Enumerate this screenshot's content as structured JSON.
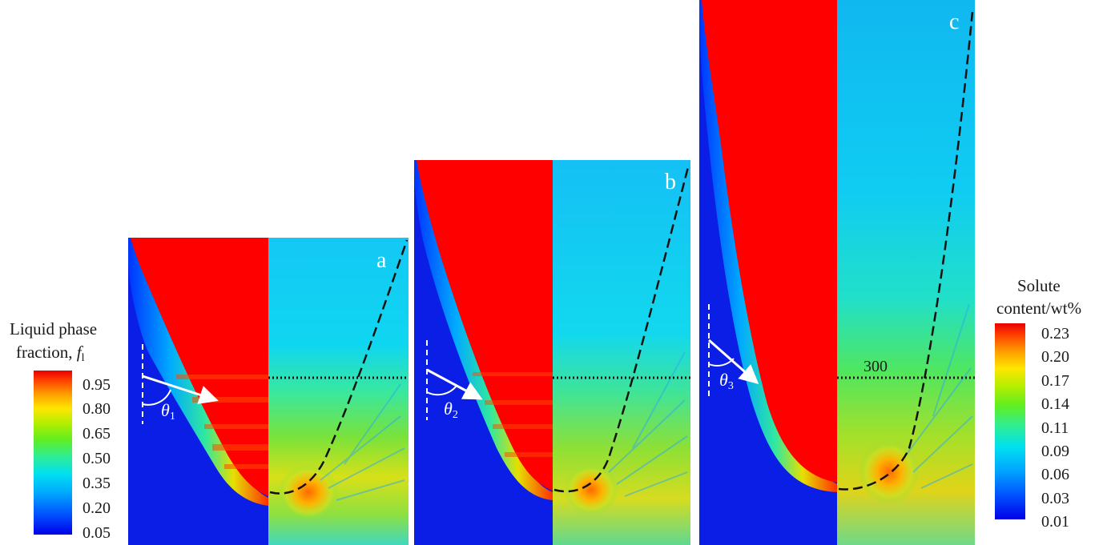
{
  "panels": [
    {
      "id": "a",
      "label": "a",
      "theta_label": "θ",
      "theta_sub": "1"
    },
    {
      "id": "b",
      "label": "b",
      "theta_label": "θ",
      "theta_sub": "2"
    },
    {
      "id": "c",
      "label": "c",
      "theta_label": "θ",
      "theta_sub": "3"
    }
  ],
  "reference_line_label": "300",
  "left_legend": {
    "title_line1": "Liquid phase",
    "title_line2": "fraction, ",
    "title_symbol": "f",
    "title_sub": "l",
    "ticks": [
      "0.95",
      "0.80",
      "0.65",
      "0.50",
      "0.35",
      "0.20",
      "0.05"
    ]
  },
  "right_legend": {
    "title_line1": "Solute",
    "title_line2": "content/wt%",
    "ticks": [
      "0.23",
      "0.20",
      "0.17",
      "0.14",
      "0.11",
      "0.09",
      "0.06",
      "0.03",
      "0.01"
    ]
  },
  "colors": {
    "liquid": "#ff0000",
    "solid": "#0019e6",
    "colormap": [
      "#0000ee",
      "#0055ff",
      "#00aaff",
      "#00ddff",
      "#33ee99",
      "#66ee22",
      "#aaee00",
      "#ffee00",
      "#ffaa00",
      "#ff6600",
      "#ff2200",
      "#ee0000"
    ]
  }
}
